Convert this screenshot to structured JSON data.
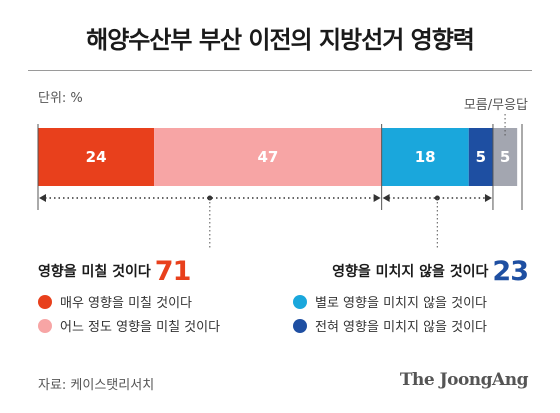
{
  "title": "해양수산부 부산 이전의 지방선거 영향력",
  "unit_label": "단위: %",
  "no_answer_label": "모름/무응답",
  "chart_data": {
    "type": "bar",
    "orientation": "horizontal-stacked",
    "categories": [
      "매우 영향을 미칠 것이다",
      "어느 정도 영향을 미칠 것이다",
      "별로 영향을 미치지 않을 것이다",
      "전혀 영향을 미치지 않을 것이다",
      "모름/무응답"
    ],
    "values": [
      24,
      47,
      18,
      5,
      5
    ],
    "colors": [
      "#e8401c",
      "#f7a5a5",
      "#1aa7dc",
      "#1e4fa2",
      "#a3a6b0"
    ],
    "value_labels": [
      "24",
      "47",
      "18",
      "5",
      "5"
    ],
    "xlim": [
      0,
      100
    ]
  },
  "summary": {
    "influence": {
      "label": "영향을 미칠 것이다",
      "value": "71"
    },
    "no_influence": {
      "label": "영향을 미치지 않을 것이다",
      "value": "23"
    }
  },
  "legend": [
    {
      "label": "매우 영향을 미칠 것이다",
      "color": "#e8401c"
    },
    {
      "label": "어느 정도 영향을 미칠 것이다",
      "color": "#f7a5a5"
    },
    {
      "label": "별로 영향을 미치지 않을 것이다",
      "color": "#1aa7dc"
    },
    {
      "label": "전혀 영향을 미치지 않을 것이다",
      "color": "#1e4fa2"
    }
  ],
  "source": "자료: 케이스탯리서치",
  "brand": "The JoongAng"
}
